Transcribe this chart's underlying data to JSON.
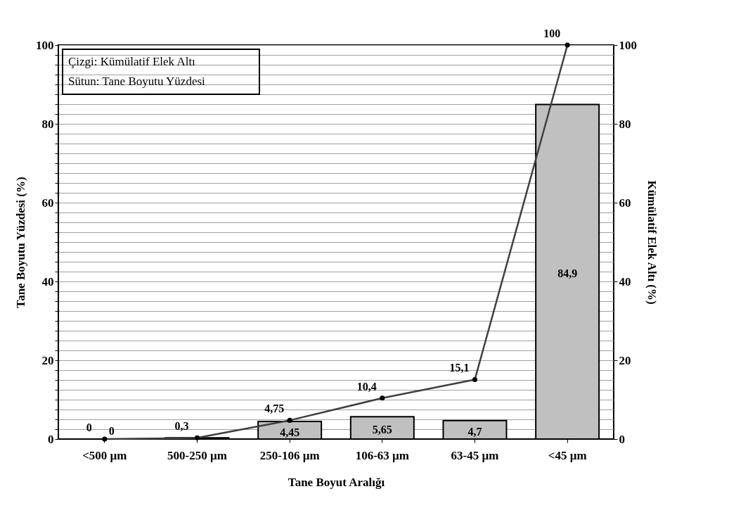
{
  "chart_data": {
    "type": "bar",
    "xlabel": "Tane Boyut Aralığı",
    "ylabel": "Tane Boyutu Yüzdesi (%)",
    "y2label": "Kümülatif Elek Altı (%)",
    "categories": [
      "<500 µm",
      "500-250 µm",
      "250-106 µm",
      "106-63 µm",
      "63-45 µm",
      "<45 µm"
    ],
    "series": [
      {
        "color": "#c0c0c0",
        "values": [
          0,
          0.3,
          4.45,
          5.65,
          4.7,
          84.9
        ],
        "value_labels": [
          "0",
          null,
          "4,45",
          "5,65",
          "4,7",
          "84,9"
        ]
      },
      {
        "type": "line",
        "axis": "y2",
        "color": "#404040",
        "marker": "circle",
        "values": [
          0,
          0.3,
          4.75,
          10.4,
          15.1,
          100
        ],
        "value_labels": [
          "0",
          "0,3",
          "4,75",
          "10,4",
          "15,1",
          "100"
        ]
      }
    ],
    "ylim": [
      0,
      100
    ],
    "yticks": [
      0,
      {
        "value": 2.5,
        "label": null
      },
      {
        "value": 5,
        "label": null
      },
      {
        "value": 7.5,
        "label": null
      },
      {
        "value": 10,
        "label": null
      },
      {
        "value": 12.5,
        "label": null
      },
      {
        "value": 15,
        "label": null
      },
      {
        "value": 17.5,
        "label": null
      },
      20,
      {
        "value": 22.5,
        "label": null
      },
      {
        "value": 25,
        "label": null
      },
      {
        "value": 27.5,
        "label": null
      },
      {
        "value": 30,
        "label": null
      },
      {
        "value": 32.5,
        "label": null
      },
      {
        "value": 35,
        "label": null
      },
      {
        "value": 37.5,
        "label": null
      },
      40,
      {
        "value": 42.5,
        "label": null
      },
      {
        "value": 45,
        "label": null
      },
      {
        "value": 47.5,
        "label": null
      },
      {
        "value": 50,
        "label": null
      },
      {
        "value": 52.5,
        "label": null
      },
      {
        "value": 55,
        "label": null
      },
      {
        "value": 57.5,
        "label": null
      },
      60,
      {
        "value": 62.5,
        "label": null
      },
      {
        "value": 65,
        "label": null
      },
      {
        "value": 67.5,
        "label": null
      },
      {
        "value": 70,
        "label": null
      },
      {
        "value": 72.5,
        "label": null
      },
      {
        "value": 75,
        "label": null
      },
      {
        "value": 77.5,
        "label": null
      },
      80,
      {
        "value": 82.5,
        "label": null
      },
      {
        "value": 85,
        "label": null
      },
      {
        "value": 87.5,
        "label": null
      },
      {
        "value": 90,
        "label": null
      },
      {
        "value": 92.5,
        "label": null
      },
      {
        "value": 95,
        "label": null
      },
      {
        "value": 97.5,
        "label": null
      },
      100
    ],
    "y2lim": [
      0,
      100
    ],
    "y2ticks": [
      0,
      20,
      40,
      60,
      80,
      100
    ],
    "grid": "y",
    "annotations": [
      "Çizgi: Kümülatif Elek Altı",
      "Sütun: Tane Boyutu Yüzdesi"
    ]
  }
}
